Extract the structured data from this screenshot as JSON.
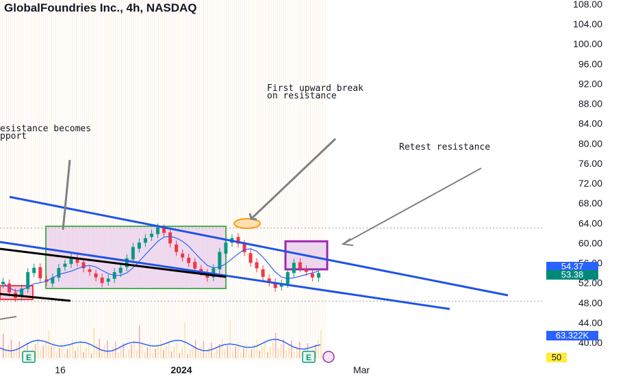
{
  "header": {
    "title": "GlobalFoundries Inc., 4h, NASDAQ"
  },
  "annotations": {
    "first_break": "First upward break\non resistance",
    "resistance_support": "esistance becomes\npport",
    "retest": "Retest resistance"
  },
  "price_badges": {
    "last_price": "54.37",
    "ma_price": "53.38",
    "volume_ma": "63.322K",
    "volume_scale": "50"
  },
  "colors": {
    "up": "#089981",
    "down": "#f23645",
    "trend_blue": "#1e53e5",
    "support_black": "#000000",
    "green_box": "#4caf50",
    "purple_box": "#9c27b0",
    "ma_line": "#2962ff",
    "badge_blue": "#2962ff",
    "badge_teal": "#00897b",
    "badge_yellow": "#ffeb3b",
    "highlight_orange": "#ff9800"
  },
  "chart_data": {
    "type": "candlestick",
    "title": "GlobalFoundries Inc., 4h, NASDAQ",
    "x_tick_labels": [
      "16",
      "2024",
      "Mar"
    ],
    "y_tick_labels": [
      "108.00",
      "104.00",
      "100.00",
      "96.00",
      "92.00",
      "88.00",
      "84.00",
      "80.00",
      "76.00",
      "72.00",
      "68.00",
      "64.00",
      "60.00",
      "56.00",
      "52.00",
      "48.00",
      "44.00",
      "40.00"
    ],
    "ylim": [
      36,
      110
    ],
    "last_price": 54.37,
    "moving_average": 53.38,
    "volume_moving_average": "63.322K",
    "price_path": [
      52,
      50,
      49,
      51,
      54,
      55,
      53,
      52,
      53,
      55,
      56,
      57,
      56,
      55,
      54,
      53,
      52,
      53,
      54,
      55,
      57,
      59,
      60,
      61,
      62,
      63,
      62,
      60,
      58,
      57,
      56,
      55,
      54,
      53,
      55,
      58,
      60,
      61,
      60,
      58,
      56,
      55,
      53,
      52,
      51,
      52,
      54,
      56,
      55,
      54,
      53,
      54
    ],
    "earnings_markers": [
      "E",
      "E"
    ]
  }
}
